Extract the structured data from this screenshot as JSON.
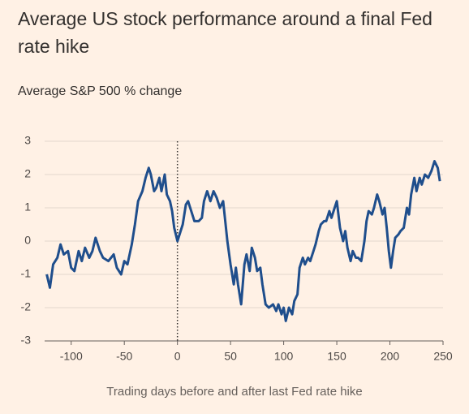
{
  "chart_data": {
    "type": "line",
    "title": "Average US stock performance around a final Fed rate hike",
    "subtitle": "Average S&P 500 % change",
    "x_label": "Trading days before and after last Fed rate hike",
    "color": "#1f4e8c",
    "x": [
      -123,
      -120,
      -117,
      -113,
      -110,
      -107,
      -103,
      -100,
      -97,
      -93,
      -90,
      -87,
      -83,
      -80,
      -77,
      -73,
      -70,
      -65,
      -60,
      -57,
      -53,
      -50,
      -47,
      -43,
      -40,
      -37,
      -33,
      -30,
      -27,
      -25,
      -22,
      -20,
      -17,
      -15,
      -12,
      -10,
      -7,
      -5,
      -3,
      0,
      3,
      5,
      8,
      10,
      13,
      16,
      20,
      23,
      25,
      28,
      31,
      34,
      37,
      40,
      43,
      45,
      47,
      50,
      53,
      55,
      57,
      60,
      63,
      65,
      68,
      70,
      73,
      75,
      78,
      80,
      83,
      86,
      90,
      93,
      95,
      98,
      100,
      102,
      105,
      108,
      110,
      113,
      115,
      118,
      120,
      123,
      125,
      128,
      130,
      133,
      135,
      138,
      140,
      143,
      145,
      148,
      150,
      153,
      156,
      158,
      160,
      163,
      165,
      168,
      170,
      173,
      176,
      178,
      180,
      183,
      185,
      188,
      190,
      193,
      195,
      197,
      199,
      201,
      203,
      205,
      208,
      210,
      213,
      216,
      218,
      220,
      223,
      225,
      228,
      230,
      233,
      236,
      239,
      242,
      245,
      247
    ],
    "values": [
      -1.0,
      -1.4,
      -0.7,
      -0.5,
      -0.1,
      -0.4,
      -0.3,
      -0.8,
      -0.9,
      -0.3,
      -0.6,
      -0.2,
      -0.5,
      -0.3,
      0.1,
      -0.3,
      -0.5,
      -0.6,
      -0.4,
      -0.8,
      -1.0,
      -0.6,
      -0.7,
      -0.1,
      0.5,
      1.2,
      1.5,
      1.9,
      2.2,
      2.0,
      1.5,
      1.6,
      1.9,
      1.5,
      2.0,
      1.4,
      1.2,
      0.9,
      0.4,
      0.0,
      0.3,
      0.5,
      1.1,
      1.2,
      0.9,
      0.6,
      0.6,
      0.7,
      1.2,
      1.5,
      1.2,
      1.5,
      1.3,
      1.0,
      1.2,
      0.6,
      0.0,
      -0.7,
      -1.3,
      -0.8,
      -1.3,
      -1.9,
      -0.7,
      -0.4,
      -0.9,
      -0.2,
      -0.5,
      -0.9,
      -0.8,
      -1.3,
      -1.9,
      -2.0,
      -1.9,
      -2.1,
      -1.9,
      -2.2,
      -2.0,
      -2.4,
      -2.0,
      -2.2,
      -1.8,
      -1.6,
      -0.8,
      -0.5,
      -0.7,
      -0.5,
      -0.6,
      -0.3,
      -0.1,
      0.3,
      0.5,
      0.6,
      0.6,
      0.9,
      0.7,
      1.0,
      1.2,
      0.4,
      0.0,
      0.3,
      -0.2,
      -0.6,
      -0.3,
      -0.5,
      -0.5,
      -0.6,
      0.0,
      0.6,
      0.9,
      0.8,
      1.0,
      1.4,
      1.2,
      0.8,
      1.0,
      0.4,
      -0.3,
      -0.8,
      -0.3,
      0.1,
      0.2,
      0.3,
      0.4,
      1.0,
      0.8,
      1.4,
      1.9,
      1.5,
      1.9,
      1.7,
      2.0,
      1.9,
      2.1,
      2.4,
      2.2,
      1.8
    ],
    "xlim": [
      -125,
      250
    ],
    "xticks": [
      -100,
      -50,
      0,
      50,
      100,
      150,
      200,
      250
    ],
    "ylim": [
      -3,
      3
    ],
    "yticks": [
      -3,
      -2,
      -1,
      0,
      1,
      2,
      3
    ],
    "grid": true,
    "reference_line_x": 0
  }
}
